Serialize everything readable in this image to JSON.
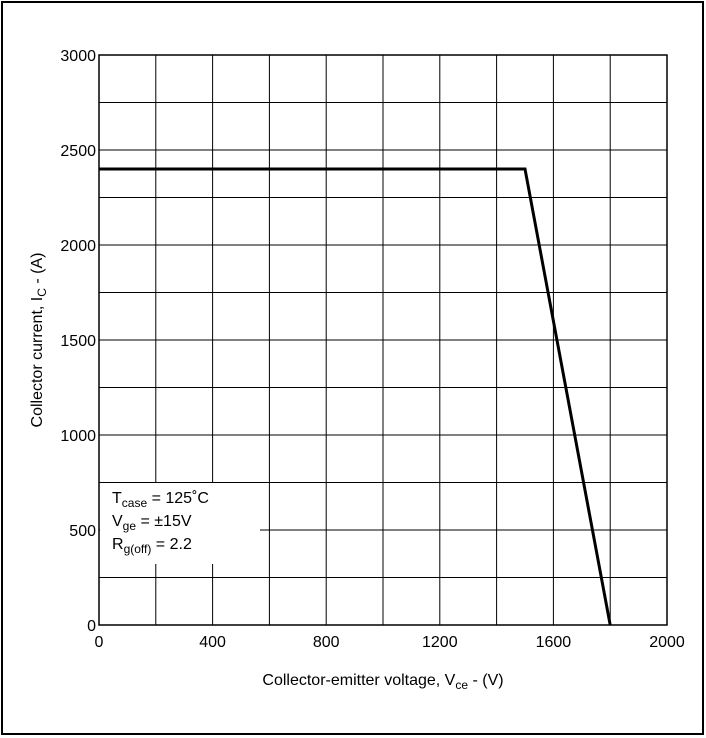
{
  "chart_data": {
    "type": "line",
    "xlabel": {
      "main": "Collector-emitter voltage, V",
      "sub": "ce",
      "unit": " - (V)"
    },
    "ylabel": {
      "main": "Collector current, I",
      "sub": "C",
      "unit": " - (A)"
    },
    "xlim": [
      0,
      2000
    ],
    "ylim": [
      0,
      3000
    ],
    "x_ticks": [
      0,
      400,
      800,
      1200,
      1600,
      2000
    ],
    "y_ticks": [
      0,
      500,
      1000,
      1500,
      2000,
      2500,
      3000
    ],
    "grid": true,
    "series": [
      {
        "x": [
          0,
          1500,
          1800
        ],
        "y": [
          2400,
          2400,
          0
        ]
      }
    ],
    "annotation": [
      {
        "main": "T",
        "sub": "case",
        "rest": " = 125˚C"
      },
      {
        "main": "V",
        "sub": "ge",
        "rest": " = ±15V"
      },
      {
        "main": "R",
        "sub": "g(off)",
        "rest": " = 2.2"
      }
    ]
  }
}
